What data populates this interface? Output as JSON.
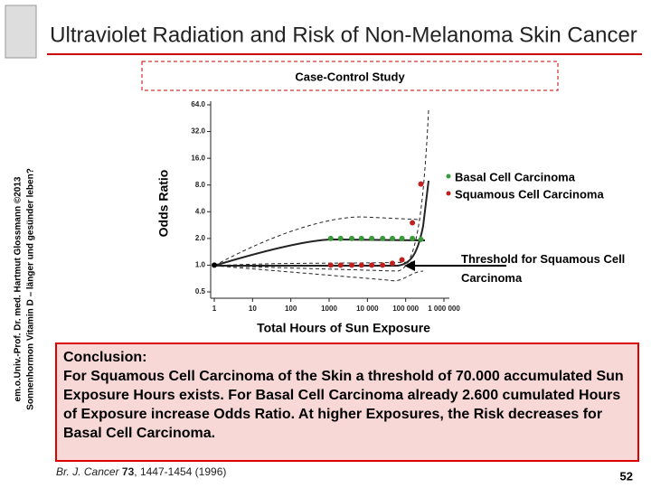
{
  "header": {
    "title": "Ultraviolet Radiation and Risk of Non-Melanoma Skin Cancer",
    "subtitle": "Case-Control Study"
  },
  "side_text": [
    "em.o.Univ.-Prof. Dr. med. Hartmut Glossmann ©2013",
    "Sonnenhormon Vitamin D – länger und gesünder leben?"
  ],
  "chart_data": {
    "type": "scatter",
    "x_label": "Total Hours of Sun Exposure",
    "y_label": "Odds Ratio",
    "log_x": true,
    "log_y": true,
    "xlim": [
      1,
      1000000
    ],
    "xticks": [
      1,
      10,
      100,
      1000,
      {
        "value": 10000,
        "label": "10 000"
      },
      {
        "value": 100000,
        "label": "100 000"
      },
      {
        "value": 1000000,
        "label": "1 000 000"
      }
    ],
    "ylim": [
      0.5,
      64
    ],
    "yticks": [
      0.5,
      {
        "value": 1,
        "label": "1.0"
      },
      {
        "value": 2,
        "label": "2.0"
      },
      {
        "value": 4,
        "label": "4.0"
      },
      {
        "value": 8,
        "label": "8.0"
      },
      {
        "value": 16,
        "label": "16.0"
      },
      {
        "value": 32,
        "label": "32.0"
      },
      {
        "value": 64,
        "label": "64.0"
      }
    ],
    "series": [
      {
        "name": "Basal Cell Carcinoma",
        "color": "#3a9a3a",
        "x": [
          1100,
          2000,
          3900,
          7000,
          13000,
          25000,
          45000,
          80000,
          150000,
          250000
        ],
        "values": [
          2.0,
          2.0,
          2.0,
          2.0,
          2.0,
          2.0,
          2.0,
          2.0,
          2.0,
          1.95
        ]
      },
      {
        "name": "Squamous Cell Carcinoma",
        "color": "#c0201f",
        "x": [
          1100,
          2000,
          3900,
          7000,
          13000,
          25000,
          45000,
          80000,
          150000,
          250000
        ],
        "values": [
          1.0,
          1.0,
          1.0,
          1.0,
          1.0,
          1.0,
          1.05,
          1.15,
          3.0,
          8.2
        ]
      }
    ],
    "annotation": "Threshold for Squamous Cell Carcinoma"
  },
  "conclusion": {
    "heading": "Conclusion:",
    "text": "For Squamous Cell Carcinoma of the Skin a threshold of 70.000 accumulated Sun Exposure Hours exists. For Basal Cell Carcinoma already 2.600 cumulated Hours of Exposure increase Odds Ratio. At higher Exposures, the Risk decreases for Basal Cell Carcinoma."
  },
  "citation": {
    "journal": "Br. J. Cancer",
    "volume": "73",
    "pages": ", 1447-1454 (1996)"
  },
  "page_number": "52"
}
